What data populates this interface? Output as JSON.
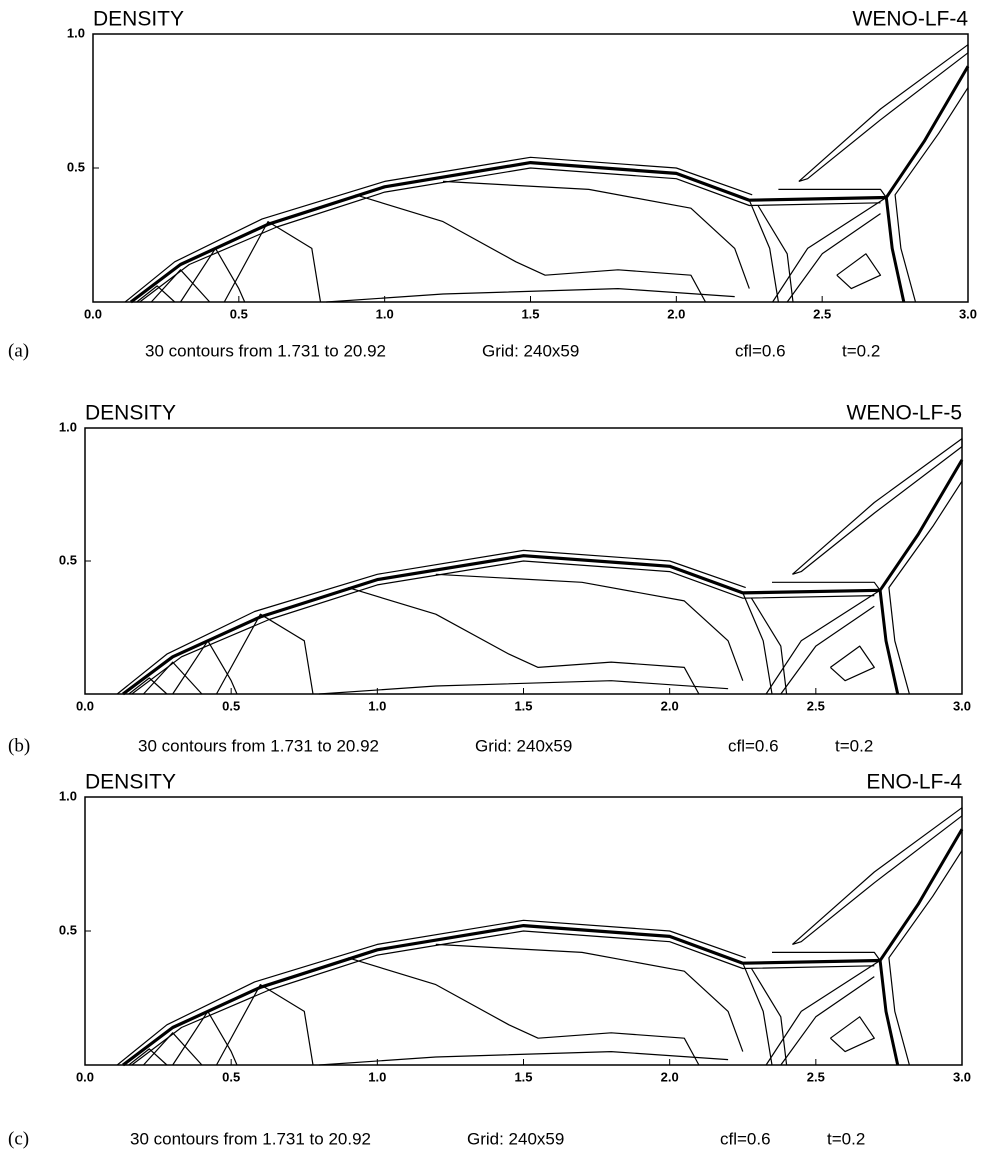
{
  "chart_data": [
    {
      "type": "contour",
      "title": "DENSITY",
      "annotation": "WENO-LF-4",
      "panel_label": "(a)",
      "caption": [
        "30  contours  from  1.731  to  20.92",
        "Grid: 240x59",
        "cfl=0.6",
        "t=0.2"
      ],
      "xlim": [
        0,
        3
      ],
      "ylim": [
        0,
        1
      ],
      "xticks": [
        {
          "value": 0,
          "label": "0.0"
        },
        0.5,
        {
          "value": 1,
          "label": "1.0"
        },
        1.5,
        {
          "value": 2,
          "label": "2.0"
        },
        2.5,
        {
          "value": 3,
          "label": "3.0"
        }
      ],
      "yticks": [
        0.5,
        {
          "value": 1,
          "label": "1.0"
        }
      ]
    },
    {
      "type": "contour",
      "title": "DENSITY",
      "annotation": "WENO-LF-5",
      "panel_label": "(b)",
      "caption": [
        "30  contours  from  1.731  to  20.92",
        "Grid: 240x59",
        "cfl=0.6",
        "t=0.2"
      ],
      "xlim": [
        0,
        3
      ],
      "ylim": [
        0,
        1
      ],
      "xticks": [
        {
          "value": 0,
          "label": "0.0"
        },
        0.5,
        {
          "value": 1,
          "label": "1.0"
        },
        1.5,
        {
          "value": 2,
          "label": "2.0"
        },
        2.5,
        {
          "value": 3,
          "label": "3.0"
        }
      ],
      "yticks": [
        0.5,
        {
          "value": 1,
          "label": "1.0"
        }
      ]
    },
    {
      "type": "contour",
      "title": "DENSITY",
      "annotation": "ENO-LF-4",
      "panel_label": "(c)",
      "caption": [
        "30  contours  from  1.731  to  20.92",
        "Grid: 240x59",
        "cfl=0.6",
        "t=0.2"
      ],
      "xlim": [
        0,
        3
      ],
      "ylim": [
        0,
        1
      ],
      "xticks": [
        {
          "value": 0,
          "label": "0.0"
        },
        0.5,
        {
          "value": 1,
          "label": "1.0"
        },
        1.5,
        {
          "value": 2,
          "label": "2.0"
        },
        2.5,
        {
          "value": 3,
          "label": "3.0"
        }
      ],
      "yticks": [
        0.5,
        {
          "value": 1,
          "label": "1.0"
        }
      ]
    }
  ]
}
